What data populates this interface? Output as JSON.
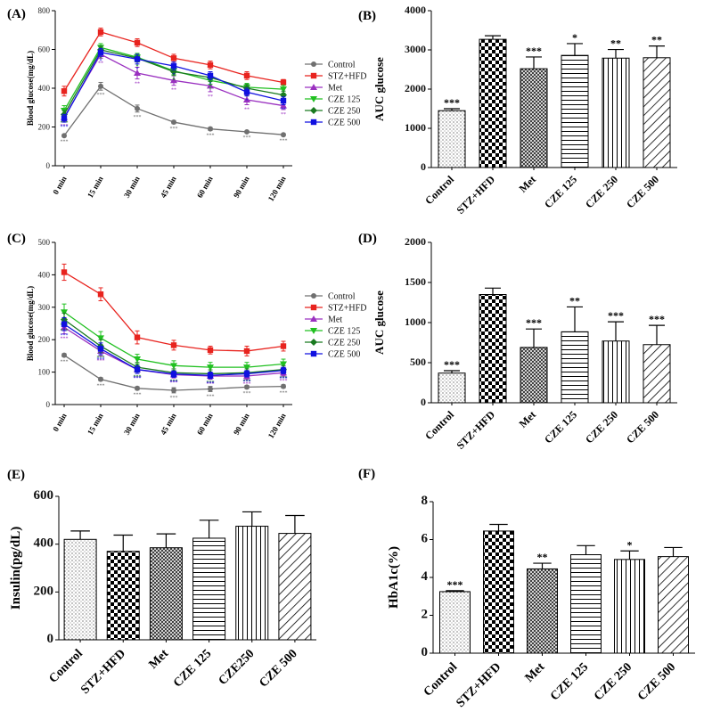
{
  "patterns": {
    "Control": "dots",
    "STZ+HFD": "checker",
    "Met": "crosshatch",
    "CZE 125": "hlines",
    "CZE 250": "vlines",
    "CZE 500": "diag",
    "CZE250": "vlines"
  },
  "chart_data": [
    {
      "id": "A",
      "tag": "(A)",
      "type": "line",
      "ylabel": "Blood glucose(mg/dL)",
      "categories": [
        "0 min",
        "15 min",
        "30 min",
        "45 min",
        "60 min",
        "90 min",
        "120 min"
      ],
      "ylim": [
        0,
        800
      ],
      "yticks": [
        0,
        200,
        400,
        600,
        800
      ],
      "legend": "right",
      "series": [
        {
          "name": "Control",
          "color": "#707070",
          "marker": "circle",
          "values": [
            155,
            410,
            295,
            225,
            190,
            175,
            160
          ],
          "errors": [
            5,
            20,
            18,
            8,
            8,
            5,
            5
          ],
          "annotations": [
            "***",
            "***",
            "***",
            "***",
            "***",
            "***",
            "***"
          ]
        },
        {
          "name": "STZ+HFD",
          "color": "#e8231e",
          "marker": "square",
          "values": [
            385,
            690,
            635,
            555,
            520,
            465,
            430
          ],
          "errors": [
            25,
            20,
            20,
            20,
            20,
            20,
            15
          ],
          "annotations": [
            "",
            "",
            "",
            "",
            "",
            "",
            ""
          ]
        },
        {
          "name": "Met",
          "color": "#9a30c0",
          "marker": "triangle-up",
          "values": [
            250,
            575,
            478,
            440,
            412,
            340,
            310
          ],
          "errors": [
            20,
            20,
            30,
            25,
            30,
            25,
            20
          ],
          "annotations": [
            "***",
            "**",
            "**",
            "**",
            "**",
            "**",
            "**"
          ]
        },
        {
          "name": "CZE 125",
          "color": "#20c020",
          "marker": "triangle-down",
          "values": [
            285,
            610,
            560,
            490,
            440,
            405,
            395
          ],
          "errors": [
            25,
            20,
            20,
            20,
            20,
            20,
            20
          ],
          "annotations": [
            "**",
            "*",
            "*",
            "*",
            "*",
            "*",
            "*"
          ]
        },
        {
          "name": "CZE 250",
          "color": "#1a7a20",
          "marker": "diamond",
          "values": [
            265,
            598,
            555,
            485,
            455,
            400,
            365
          ],
          "errors": [
            20,
            20,
            20,
            20,
            20,
            20,
            20
          ],
          "annotations": [
            "***",
            "*",
            "*",
            "*",
            "*",
            "*",
            "*"
          ]
        },
        {
          "name": "CZE 500",
          "color": "#1010e0",
          "marker": "square",
          "values": [
            245,
            585,
            550,
            515,
            465,
            380,
            335
          ],
          "errors": [
            20,
            20,
            25,
            20,
            20,
            20,
            20
          ],
          "annotations": [
            "***",
            "*",
            "*",
            "*",
            "*",
            "*",
            "**"
          ]
        }
      ]
    },
    {
      "id": "B",
      "tag": "(B)",
      "type": "bar",
      "ylabel": "AUC glucose",
      "categories": [
        "Control",
        "STZ+HFD",
        "Met",
        "CZE 125",
        "CZE 250",
        "CZE 500"
      ],
      "values": [
        1450,
        3270,
        2520,
        2860,
        2790,
        2800
      ],
      "errors": [
        50,
        90,
        300,
        300,
        220,
        300
      ],
      "annotations": [
        "***",
        "",
        "***",
        "*",
        "**",
        "**"
      ],
      "ylim": [
        0,
        4000
      ],
      "yticks": [
        0,
        1000,
        2000,
        3000,
        4000
      ]
    },
    {
      "id": "C",
      "tag": "(C)",
      "type": "line",
      "ylabel": "Blood glucose(mg/dL)",
      "categories": [
        "0 min",
        "15 min",
        "30 min",
        "45 min",
        "60 min",
        "90 min",
        "120 min"
      ],
      "ylim": [
        0,
        500
      ],
      "yticks": [
        0,
        100,
        200,
        300,
        400,
        500
      ],
      "legend": "right",
      "series": [
        {
          "name": "Control",
          "color": "#707070",
          "marker": "circle",
          "values": [
            152,
            78,
            50,
            44,
            48,
            54,
            56
          ],
          "errors": [
            5,
            5,
            5,
            8,
            8,
            5,
            5
          ],
          "annotations": [
            "***",
            "***",
            "***",
            "***",
            "***",
            "***",
            "***"
          ]
        },
        {
          "name": "STZ+HFD",
          "color": "#e8231e",
          "marker": "square",
          "values": [
            408,
            340,
            207,
            183,
            168,
            165,
            180
          ],
          "errors": [
            25,
            20,
            20,
            15,
            12,
            15,
            15
          ],
          "annotations": [
            "",
            "",
            "",
            "",
            "",
            "",
            ""
          ]
        },
        {
          "name": "Met",
          "color": "#9a30c0",
          "marker": "triangle-up",
          "values": [
            238,
            165,
            108,
            92,
            88,
            88,
            98
          ],
          "errors": [
            20,
            15,
            12,
            10,
            10,
            10,
            10
          ],
          "annotations": [
            "***",
            "***",
            "***",
            "***",
            "***",
            "***",
            "***"
          ]
        },
        {
          "name": "CZE 125",
          "color": "#20c020",
          "marker": "triangle-down",
          "values": [
            285,
            205,
            140,
            120,
            115,
            115,
            125
          ],
          "errors": [
            25,
            20,
            15,
            15,
            15,
            15,
            15
          ],
          "annotations": [
            "***",
            "***",
            "**",
            "**",
            "**",
            "**",
            "**"
          ]
        },
        {
          "name": "CZE 250",
          "color": "#1a7a20",
          "marker": "diamond",
          "values": [
            262,
            180,
            115,
            98,
            95,
            98,
            108
          ],
          "errors": [
            20,
            20,
            15,
            12,
            12,
            12,
            12
          ],
          "annotations": [
            "***",
            "***",
            "***",
            "***",
            "***",
            "***",
            "***"
          ]
        },
        {
          "name": "CZE 500",
          "color": "#1010e0",
          "marker": "square",
          "values": [
            248,
            172,
            108,
            94,
            90,
            95,
            105
          ],
          "errors": [
            20,
            18,
            12,
            10,
            10,
            10,
            10
          ],
          "annotations": [
            "***",
            "***",
            "***",
            "***",
            "***",
            "***",
            "***"
          ]
        }
      ]
    },
    {
      "id": "D",
      "tag": "(D)",
      "type": "bar",
      "ylabel": "AUC glucose",
      "categories": [
        "Control",
        "STZ+HFD",
        "Met",
        "CZE 125",
        "CZE 250",
        "CZE 500"
      ],
      "values": [
        370,
        1350,
        690,
        885,
        770,
        725
      ],
      "errors": [
        30,
        80,
        230,
        310,
        240,
        240
      ],
      "annotations": [
        "***",
        "",
        "***",
        "**",
        "***",
        "***"
      ],
      "ylim": [
        0,
        2000
      ],
      "yticks": [
        0,
        500,
        1000,
        1500,
        2000
      ]
    },
    {
      "id": "E",
      "tag": "(E)",
      "type": "bar",
      "ylabel": "Insulin(pg/dL)",
      "categories": [
        "Control",
        "STZ+HFD",
        "Met",
        "CZE 125",
        "CZE250",
        "CZE 500"
      ],
      "values": [
        420,
        370,
        385,
        425,
        475,
        445
      ],
      "errors": [
        35,
        68,
        58,
        75,
        60,
        75
      ],
      "annotations": [
        "",
        "",
        "",
        "",
        "",
        ""
      ],
      "ylim": [
        0,
        600
      ],
      "yticks": [
        0,
        200,
        400,
        600
      ]
    },
    {
      "id": "F",
      "tag": "(F)",
      "type": "bar",
      "ylabel": "HbA1c(%)",
      "categories": [
        "Control",
        "STZ+HFD",
        "Met",
        "CZE 125",
        "CZE 250",
        "CZE 500"
      ],
      "values": [
        3.25,
        6.45,
        4.45,
        5.2,
        4.95,
        5.1
      ],
      "errors": [
        0.05,
        0.35,
        0.3,
        0.48,
        0.45,
        0.48
      ],
      "annotations": [
        "***",
        "",
        "**",
        "",
        "*",
        ""
      ],
      "ylim": [
        0,
        8
      ],
      "yticks": [
        0,
        2,
        4,
        6,
        8
      ]
    }
  ]
}
